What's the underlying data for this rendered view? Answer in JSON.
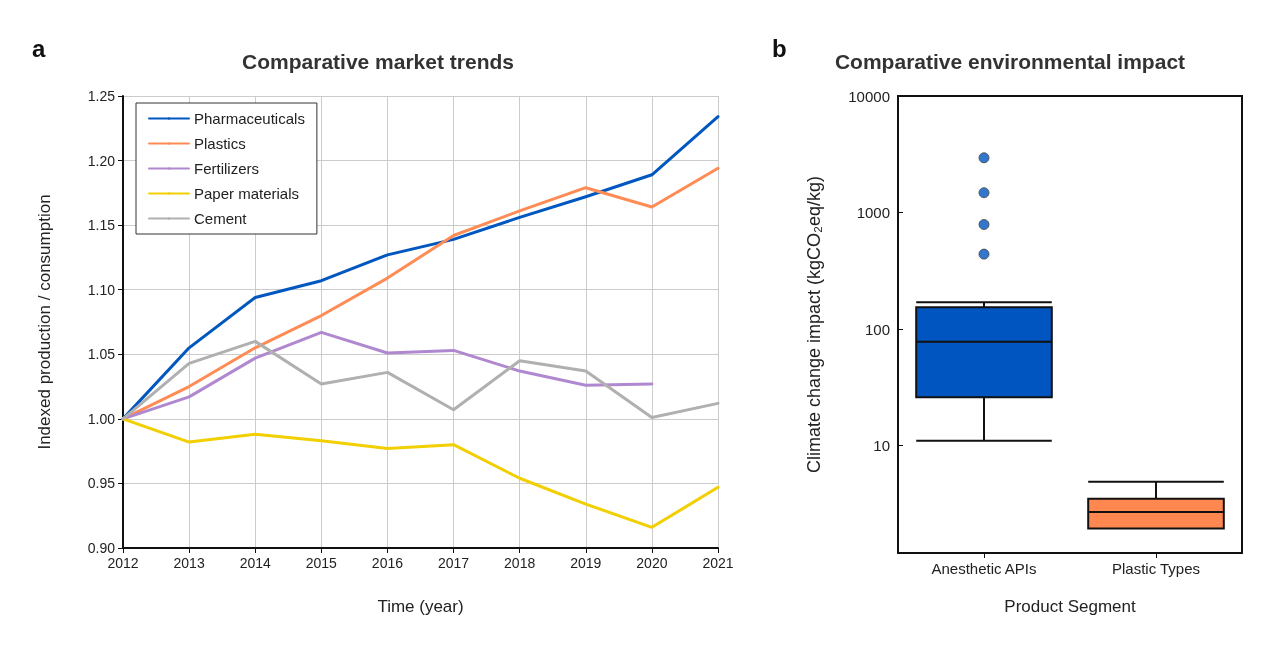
{
  "chart_data": [
    {
      "type": "line",
      "title": "Comparative market trends",
      "xlabel": "Time (year)",
      "ylabel": "Indexed production / consumption",
      "annotations": [
        "a"
      ],
      "x": [
        2012,
        2013,
        2014,
        2015,
        2016,
        2017,
        2018,
        2019,
        2020,
        2021
      ],
      "xlim": [
        2012,
        2021
      ],
      "xticks": [
        2012,
        2013,
        2014,
        2015,
        2016,
        2017,
        2018,
        2019,
        2020,
        2021
      ],
      "ylim": [
        0.9,
        1.25
      ],
      "yticks": [
        {
          "value": 0.9,
          "label": "0.90"
        },
        {
          "value": 0.95,
          "label": "0.95"
        },
        {
          "value": 1.0,
          "label": "1.00"
        },
        {
          "value": 1.05,
          "label": "1.05"
        },
        {
          "value": 1.1,
          "label": "1.10"
        },
        {
          "value": 1.15,
          "label": "1.15"
        },
        {
          "value": 1.2,
          "label": "1.20"
        },
        {
          "value": 1.25,
          "label": "1.25"
        }
      ],
      "grid": true,
      "legend": "top left",
      "marker": "none",
      "line_style": "solid",
      "series": [
        {
          "name": "Pharmaceuticals",
          "color": "#0057bf",
          "values": [
            1.0,
            1.055,
            1.094,
            1.107,
            1.127,
            1.139,
            1.156,
            1.172,
            1.189,
            1.234
          ]
        },
        {
          "name": "Plastics",
          "color": "#ff8c55",
          "values": [
            1.0,
            1.025,
            1.055,
            1.08,
            1.109,
            1.142,
            1.161,
            1.179,
            1.164,
            1.194
          ]
        },
        {
          "name": "Fertilizers",
          "color": "#b088d0",
          "values": [
            1.0,
            1.017,
            1.047,
            1.067,
            1.051,
            1.053,
            1.037,
            1.026,
            1.027,
            null
          ]
        },
        {
          "name": "Paper materials",
          "color": "#f2cf00",
          "values": [
            1.0,
            0.982,
            0.988,
            0.983,
            0.977,
            0.98,
            0.954,
            0.934,
            0.916,
            0.947
          ]
        },
        {
          "name": "Cement",
          "color": "#b0b0b0",
          "values": [
            1.0,
            1.043,
            1.06,
            1.027,
            1.036,
            1.007,
            1.045,
            1.037,
            1.001,
            1.012
          ]
        }
      ]
    },
    {
      "type": "box",
      "title": "Comparative environmental impact",
      "xlabel": "Product Segment",
      "ylabel": "Climate change impact (kgCO₂eq/kg)",
      "annotations": [
        "b"
      ],
      "categories": [
        "Anesthetic APIs",
        "Plastic Types"
      ],
      "colors": [
        "#0055c0",
        "#ff8850"
      ],
      "log": true,
      "ylim": [
        1.2,
        10000
      ],
      "yticks": [
        10,
        100,
        1000,
        10000
      ],
      "grid": false,
      "boxes": [
        {
          "low": 11,
          "q1": 26,
          "median": 78,
          "q3": 154,
          "high": 170,
          "outliers": [
            440,
            790,
            1480,
            2950
          ]
        },
        {
          "low": 1.95,
          "q1": 1.95,
          "median": 2.7,
          "q3": 3.5,
          "high": 4.9
        }
      ]
    }
  ]
}
